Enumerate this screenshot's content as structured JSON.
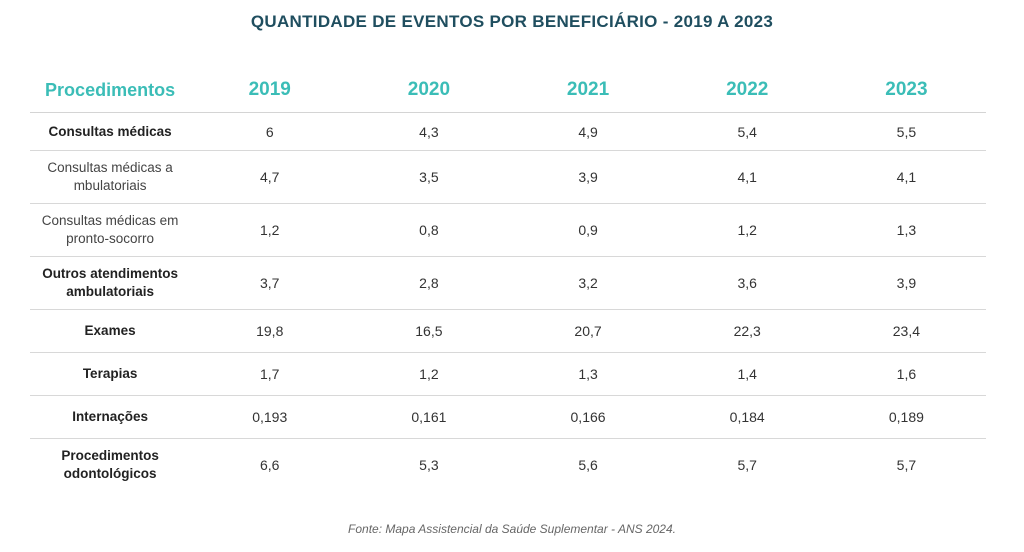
{
  "title": "QUANTIDADE DE EVENTOS POR BENEFICIÁRIO - 2019 A 2023",
  "table": {
    "header": {
      "procedures": "Procedimentos",
      "years": [
        "2019",
        "2020",
        "2021",
        "2022",
        "2023"
      ]
    },
    "rows": [
      {
        "label": "Consultas médicas",
        "values": [
          "6",
          "4,3",
          "4,9",
          "5,4",
          "5,5"
        ]
      },
      {
        "label": "Consultas médicas a mbulatoriais",
        "values": [
          "4,7",
          "3,5",
          "3,9",
          "4,1",
          "4,1"
        ]
      },
      {
        "label": "Consultas médicas em pronto-socorro",
        "values": [
          "1,2",
          "0,8",
          "0,9",
          "1,2",
          "1,3"
        ]
      },
      {
        "label": "Outros atendimentos ambulatoriais",
        "values": [
          "3,7",
          "2,8",
          "3,2",
          "3,6",
          "3,9"
        ]
      },
      {
        "label": "Exames",
        "values": [
          "19,8",
          "16,5",
          "20,7",
          "22,3",
          "23,4"
        ]
      },
      {
        "label": "Terapias",
        "values": [
          "1,7",
          "1,2",
          "1,3",
          "1,4",
          "1,6"
        ]
      },
      {
        "label": "Internações",
        "values": [
          "0,193",
          "0,161",
          "0,166",
          "0,184",
          "0,189"
        ]
      },
      {
        "label": "Procedimentos odontológicos",
        "values": [
          "6,6",
          "5,3",
          "5,6",
          "5,7",
          "5,7"
        ]
      }
    ]
  },
  "source": "Fonte: Mapa Assistencial da Saúde Suplementar - ANS 2024.",
  "colors": {
    "title": "#1f4e5f",
    "header_accent": "#3bbdb7",
    "divider": "#d8d8d8"
  }
}
